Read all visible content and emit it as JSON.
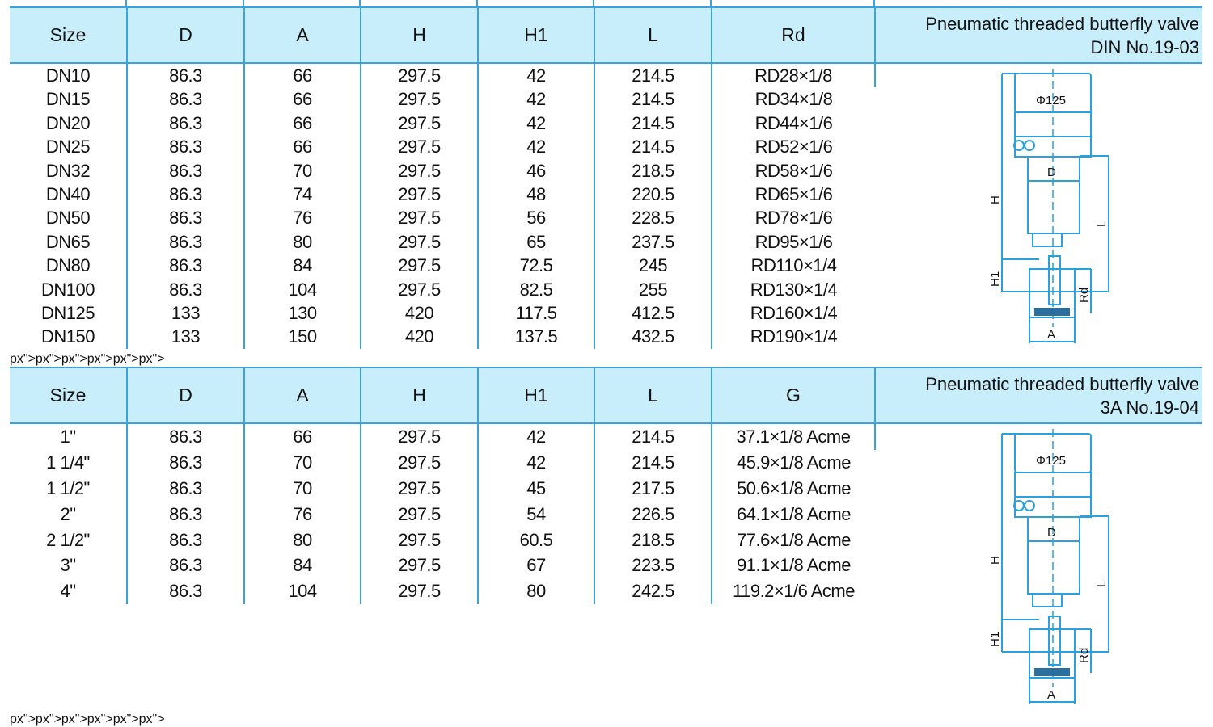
{
  "table1": {
    "headers": [
      "Size",
      "D",
      "A",
      "H",
      "H1",
      "L",
      "Rd"
    ],
    "title_line1": "Pneumatic threaded butterfly valve",
    "title_line2": "DIN    No.19-03",
    "rows": [
      [
        "DN10",
        "86.3",
        "66",
        "297.5",
        "42",
        "214.5",
        "RD28×1/8"
      ],
      [
        "DN15",
        "86.3",
        "66",
        "297.5",
        "42",
        "214.5",
        "RD34×1/8"
      ],
      [
        "DN20",
        "86.3",
        "66",
        "297.5",
        "42",
        "214.5",
        "RD44×1/6"
      ],
      [
        "DN25",
        "86.3",
        "66",
        "297.5",
        "42",
        "214.5",
        "RD52×1/6"
      ],
      [
        "DN32",
        "86.3",
        "70",
        "297.5",
        "46",
        "218.5",
        "RD58×1/6"
      ],
      [
        "DN40",
        "86.3",
        "74",
        "297.5",
        "48",
        "220.5",
        "RD65×1/6"
      ],
      [
        "DN50",
        "86.3",
        "76",
        "297.5",
        "56",
        "228.5",
        "RD78×1/6"
      ],
      [
        "DN65",
        "86.3",
        "80",
        "297.5",
        "65",
        "237.5",
        "RD95×1/6"
      ],
      [
        "DN80",
        "86.3",
        "84",
        "297.5",
        "72.5",
        "245",
        "RD110×1/4"
      ],
      [
        "DN100",
        "86.3",
        "104",
        "297.5",
        "82.5",
        "255",
        "RD130×1/4"
      ],
      [
        "DN125",
        "133",
        "130",
        "420",
        "117.5",
        "412.5",
        "RD160×1/4"
      ],
      [
        "DN150",
        "133",
        "150",
        "420",
        "137.5",
        "432.5",
        "RD190×1/4"
      ]
    ],
    "diagram": {
      "top_label": "Φ125",
      "labels": [
        "D",
        "H",
        "L",
        "H1",
        "Rd",
        "A"
      ]
    }
  },
  "table2": {
    "headers": [
      "Size",
      "D",
      "A",
      "H",
      "H1",
      "L",
      "G"
    ],
    "title_line1": "Pneumatic threaded butterfly valve",
    "title_line2": "3A     No.19-04",
    "rows": [
      [
        "1\"",
        "86.3",
        "66",
        "297.5",
        "42",
        "214.5",
        "37.1×1/8 Acme"
      ],
      [
        "1 1/4\"",
        "86.3",
        "70",
        "297.5",
        "42",
        "214.5",
        "45.9×1/8 Acme"
      ],
      [
        "1 1/2\"",
        "86.3",
        "70",
        "297.5",
        "45",
        "217.5",
        "50.6×1/8 Acme"
      ],
      [
        "2\"",
        "86.3",
        "76",
        "297.5",
        "54",
        "226.5",
        "64.1×1/8 Acme"
      ],
      [
        "2 1/2\"",
        "86.3",
        "80",
        "297.5",
        "60.5",
        "218.5",
        "77.6×1/8 Acme"
      ],
      [
        "3\"",
        "86.3",
        "84",
        "297.5",
        "67",
        "223.5",
        "91.1×1/8 Acme"
      ],
      [
        "4\"",
        "86.3",
        "104",
        "297.5",
        "80",
        "242.5",
        "119.2×1/6 Acme"
      ]
    ],
    "diagram": {
      "top_label": "Φ125",
      "labels": [
        "D",
        "H",
        "L",
        "H1",
        "Rd",
        "A"
      ]
    }
  },
  "colors": {
    "header_bg": "#c9eefb",
    "rule": "#3aa3d9",
    "drawing": "#2aa0dc"
  }
}
